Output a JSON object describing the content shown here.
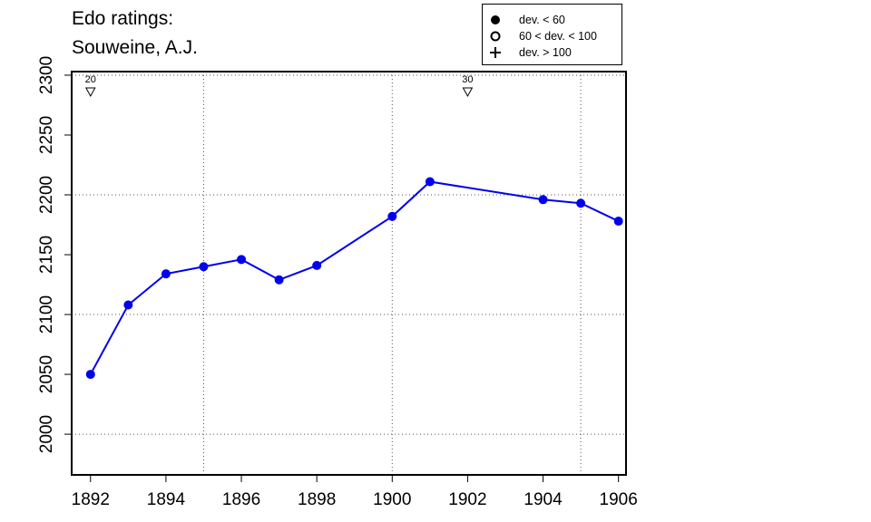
{
  "title": {
    "line1": "Edo ratings:",
    "line2": "Souweine, A.J."
  },
  "legend": [
    {
      "symbol": "filled-circle",
      "label": "dev. < 60"
    },
    {
      "symbol": "open-circle",
      "label": "60 < dev. < 100"
    },
    {
      "symbol": "plus",
      "label": "dev. > 100"
    }
  ],
  "colors": {
    "series": "#0000ee",
    "grid": "#aaaaaa",
    "axis": "#000000"
  },
  "chart_data": {
    "type": "line",
    "title": "Edo ratings: Souweine, A.J.",
    "xlabel": "",
    "ylabel": "",
    "xlim": [
      1891.5,
      1906.2
    ],
    "ylim": [
      1966,
      2303
    ],
    "grid": true,
    "legend_position": "top-right (outside plot)",
    "x_ticks": [
      1892,
      1894,
      1896,
      1898,
      1900,
      1902,
      1904,
      1906
    ],
    "y_ticks": [
      2000,
      2050,
      2100,
      2150,
      2200,
      2250,
      2300
    ],
    "x_grid": [
      1895,
      1900,
      1905
    ],
    "y_grid": [
      2000,
      2100,
      2200,
      2300
    ],
    "series": [
      {
        "symbol": "filled-circle",
        "x": [
          1892,
          1893,
          1894,
          1895,
          1896,
          1897,
          1898,
          1900,
          1901,
          1904,
          1905,
          1906
        ],
        "y": [
          2050,
          2108,
          2134,
          2140,
          2146,
          2129,
          2141,
          2182,
          2211,
          2196,
          2193,
          2178
        ]
      }
    ],
    "annotations": [
      {
        "x": 1892,
        "label": "20",
        "marker": "down-triangle"
      },
      {
        "x": 1902,
        "label": "30",
        "marker": "down-triangle"
      }
    ]
  }
}
